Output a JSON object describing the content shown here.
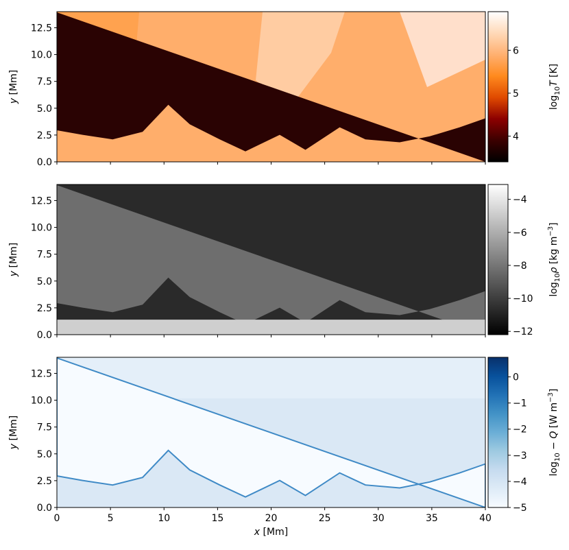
{
  "chart_data": [
    {
      "type": "heatmap",
      "quantity": "temperature",
      "colormap": "gist_heat",
      "colormap_stops": [
        "#000000",
        "#3b0000",
        "#8c0000",
        "#e04a00",
        "#ff8a1e",
        "#ffb070",
        "#ffd9b8",
        "#ffffff"
      ],
      "xlim": [
        0,
        40
      ],
      "ylim": [
        0,
        14
      ],
      "ylabel_var": "y",
      "ylabel_unit": " [Mm]",
      "x_ticks": [
        0,
        5,
        10,
        15,
        20,
        25,
        30,
        35,
        40
      ],
      "y_ticks": [
        "0.0",
        "2.5",
        "5.0",
        "7.5",
        "10.0",
        "12.5"
      ],
      "colorbar": {
        "range": [
          3.4,
          6.9
        ],
        "ticks": [
          "4",
          "5",
          "6"
        ],
        "label_prefix": "log",
        "label_sub": "10",
        "label_var": "T",
        "label_unit": " [K]"
      }
    },
    {
      "type": "heatmap",
      "quantity": "density",
      "colormap": "gray",
      "colormap_stops": [
        "#000000",
        "#ffffff"
      ],
      "xlim": [
        0,
        40
      ],
      "ylim": [
        0,
        14
      ],
      "ylabel_var": "y",
      "ylabel_unit": " [Mm]",
      "x_ticks": [
        0,
        5,
        10,
        15,
        20,
        25,
        30,
        35,
        40
      ],
      "y_ticks": [
        "0.0",
        "2.5",
        "5.0",
        "7.5",
        "10.0",
        "12.5"
      ],
      "colorbar": {
        "range": [
          -12.2,
          -3.1
        ],
        "ticks": [
          "−12",
          "−10",
          "−8",
          "−6",
          "−4"
        ],
        "label_prefix": "log",
        "label_sub": "10",
        "label_var": "ρ",
        "label_unit": " [kg m",
        "label_sup": "−3",
        "label_end": "]"
      }
    },
    {
      "type": "heatmap",
      "quantity": "cooling",
      "colormap": "Blues",
      "colormap_stops": [
        "#f7fbff",
        "#deebf7",
        "#c6dbef",
        "#9ecae1",
        "#6baed6",
        "#4292c6",
        "#2171b5",
        "#08519c",
        "#08306b"
      ],
      "xlim": [
        0,
        40
      ],
      "ylim": [
        0,
        14
      ],
      "xlabel_var": "x",
      "xlabel_unit": " [Mm]",
      "ylabel_var": "y",
      "ylabel_unit": " [Mm]",
      "x_ticks": [
        0,
        5,
        10,
        15,
        20,
        25,
        30,
        35,
        40
      ],
      "y_ticks": [
        "0.0",
        "2.5",
        "5.0",
        "7.5",
        "10.0",
        "12.5"
      ],
      "colorbar": {
        "range": [
          -5,
          0.75
        ],
        "ticks": [
          "−5",
          "−4",
          "−3",
          "−2",
          "−1",
          "0"
        ],
        "label_prefix": "log",
        "label_sub": "10",
        "label_var": " − Q",
        "label_unit": " [W m",
        "label_sup": "−3",
        "label_end": "]"
      }
    }
  ]
}
